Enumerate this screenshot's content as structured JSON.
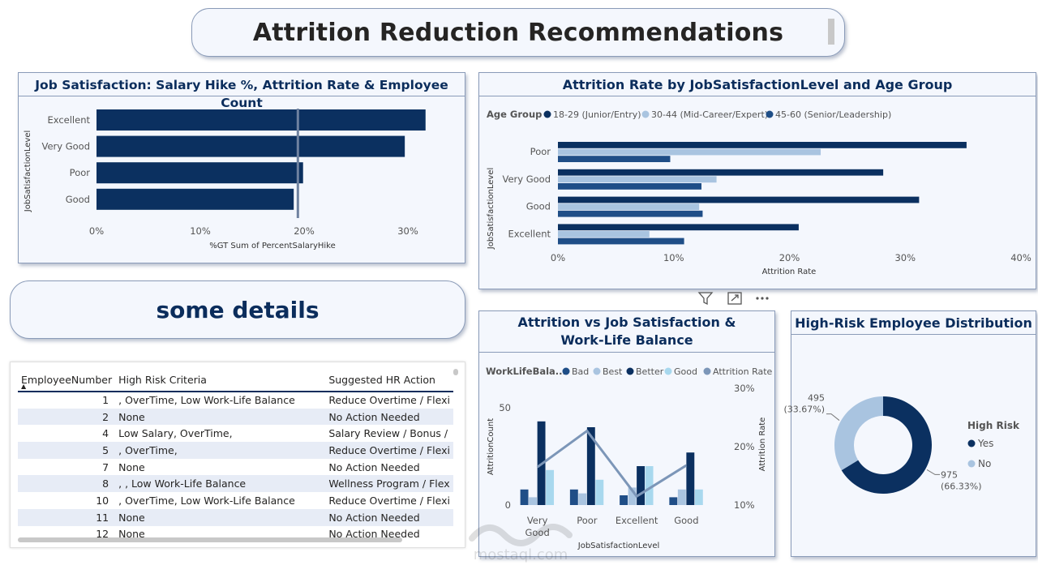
{
  "page": {
    "title": "Attrition Reduction Recommendations",
    "details_title": "some details"
  },
  "colors": {
    "navy": "#0b3060",
    "light": "#a9c4e0",
    "mid": "#1f4e87",
    "pale": "#a8d8ee",
    "line": "#7c96b8"
  },
  "panel1": {
    "title": "Job Satisfaction: Salary Hike %, Attrition Rate & Employee Count",
    "chart_data": {
      "type": "bar",
      "orientation": "horizontal",
      "categories": [
        "Excellent",
        "Very Good",
        "Poor",
        "Good"
      ],
      "values": [
        31.7,
        29.7,
        19.9,
        19.0
      ],
      "reference_line": 19.4,
      "xlim": [
        0,
        35
      ],
      "ticks": [
        "0%",
        "10%",
        "20%",
        "30%"
      ],
      "tick_values": [
        0,
        10,
        20,
        30
      ],
      "xlabel": "%GT Sum of PercentSalaryHike",
      "ylabel": "JobSatisfactionLevel"
    }
  },
  "panel2": {
    "title": "Attrition Rate by JobSatisfactionLevel and Age Group",
    "chart_data": {
      "type": "bar",
      "orientation": "horizontal",
      "legend_title": "Age Group",
      "categories": [
        "Poor",
        "Very Good",
        "Good",
        "Excellent"
      ],
      "series": [
        {
          "name": "18-29 (Junior/Entry)",
          "color": "#0b3060",
          "values": [
            35.3,
            28.1,
            31.2,
            20.8
          ]
        },
        {
          "name": "30-44 (Mid-Career/Expert)",
          "color": "#a9c4e0",
          "values": [
            22.7,
            13.7,
            12.2,
            7.9
          ]
        },
        {
          "name": "45-60 (Senior/Leadership)",
          "color": "#1f4e87",
          "values": [
            9.7,
            12.4,
            12.5,
            10.9
          ]
        }
      ],
      "xlim": [
        0,
        40
      ],
      "ticks": [
        "0%",
        "10%",
        "20%",
        "30%",
        "40%"
      ],
      "tick_values": [
        0,
        10,
        20,
        30,
        40
      ],
      "xlabel": "Attrition Rate",
      "ylabel": "JobSatisfactionLevel"
    }
  },
  "panel3": {
    "title": "Attrition vs Job Satisfaction & Work-Life Balance",
    "chart_data": {
      "type": "bar",
      "legend_title": "WorkLifeBala...",
      "categories": [
        "Very Good",
        "Poor",
        "Excellent",
        "Good"
      ],
      "category_lines": [
        [
          "Very",
          "Good"
        ],
        [
          "Poor"
        ],
        [
          "Excellent"
        ],
        [
          "Good"
        ]
      ],
      "series": [
        {
          "name": "Bad",
          "color": "#1f4e87",
          "values": [
            8,
            8,
            5,
            4
          ]
        },
        {
          "name": "Best",
          "color": "#a9c4e0",
          "values": [
            4,
            6,
            9,
            8
          ]
        },
        {
          "name": "Better",
          "color": "#0b3060",
          "values": [
            43,
            40,
            20,
            27
          ]
        },
        {
          "name": "Good",
          "color": "#a8d8ee",
          "values": [
            18,
            13,
            20,
            8
          ]
        }
      ],
      "line_series": {
        "name": "Attrition Rate",
        "color": "#7c96b8",
        "values": [
          16.5,
          22.7,
          11.5,
          16.8
        ]
      },
      "ylim": [
        0,
        55
      ],
      "y_ticks": [
        "0",
        "50"
      ],
      "y_tick_values": [
        0,
        50
      ],
      "y2lim": [
        10,
        30
      ],
      "y2_ticks": [
        "10%",
        "20%",
        "30%"
      ],
      "y2_tick_values": [
        10,
        20,
        30
      ],
      "xlabel": "JobSatisfactionLevel",
      "ylabel": "AttritionCount",
      "y2label": "Attrition Rate"
    }
  },
  "panel4": {
    "title": "High-Risk Employee Distribution",
    "chart_data": {
      "type": "pie",
      "donut": true,
      "legend_title": "High Risk",
      "slices": [
        {
          "name": "Yes",
          "value": 975,
          "percent_label": "(66.33%)",
          "value_label": "975",
          "color": "#0b3060"
        },
        {
          "name": "No",
          "value": 495,
          "percent_label": "(33.67%)",
          "value_label": "495",
          "color": "#a9c4e0"
        }
      ]
    }
  },
  "table": {
    "columns": [
      "EmployeeNumber",
      "High Risk Criteria",
      "Suggested HR Action"
    ],
    "rows": [
      [
        "1",
        ", OverTime, Low Work-Life Balance",
        "Reduce Overtime / Flexi"
      ],
      [
        "2",
        "None",
        "No Action Needed"
      ],
      [
        "4",
        "Low Salary, OverTime,",
        "Salary Review / Bonus /"
      ],
      [
        "5",
        ", OverTime,",
        "Reduce Overtime / Flexi"
      ],
      [
        "7",
        "None",
        "No Action Needed"
      ],
      [
        "8",
        ", , Low Work-Life Balance",
        "Wellness Program / Flex"
      ],
      [
        "10",
        ", OverTime, Low Work-Life Balance",
        "Reduce Overtime / Flexi"
      ],
      [
        "11",
        "None",
        "No Action Needed"
      ],
      [
        "12",
        "None",
        "No Action Needed"
      ]
    ]
  },
  "icons": {
    "filter": "filter-icon",
    "focus": "focus-mode-icon",
    "more": "more-options-icon"
  },
  "watermark": {
    "text": "mostaql.com"
  }
}
